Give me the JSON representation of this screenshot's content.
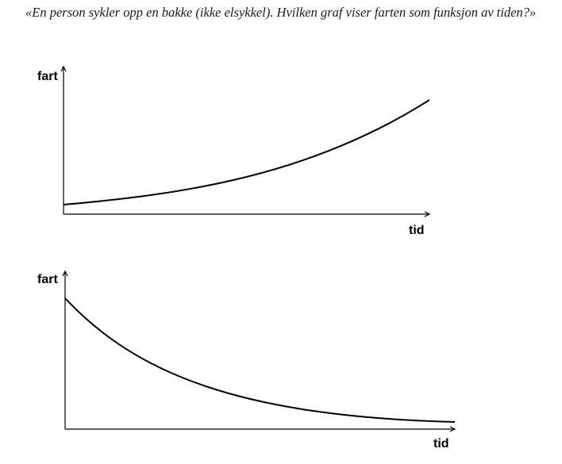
{
  "question": {
    "text": "«En person sykler opp en bakke (ikke elsykkel). Hvilken graf viser farten som funksjon av tiden?»"
  },
  "graphs": [
    {
      "ylabel": "fart",
      "xlabel": "tid",
      "curve": "increasing"
    },
    {
      "ylabel": "fart",
      "xlabel": "tid",
      "curve": "decreasing"
    }
  ],
  "colors": {
    "text": "#1a1a1a",
    "axes": "#000000",
    "curve": "#000000"
  }
}
